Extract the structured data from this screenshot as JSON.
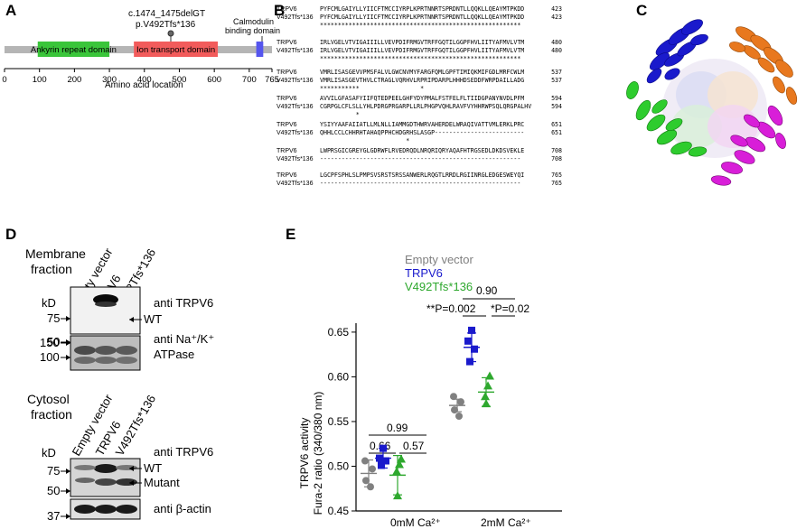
{
  "panelA": {
    "letter": "A",
    "mutation_line1": "c.1474_1475delGT",
    "mutation_line2": "p.V492Tfs*136",
    "domains": [
      {
        "label": "Ankyrin repeat domain",
        "start": 95,
        "end": 300,
        "color": "#3ac53a"
      },
      {
        "label": "Ion transport domain",
        "start": 370,
        "end": 610,
        "color": "#f25b5b"
      },
      {
        "label": "Calmodulin binding domain",
        "start": 720,
        "end": 740,
        "color": "#5555ee"
      }
    ],
    "ticks": [
      "0",
      "100",
      "200",
      "300",
      "400",
      "500",
      "600",
      "700",
      "765"
    ],
    "axis_label": "Amino acid location"
  },
  "panelB": {
    "letter": "B",
    "blocks": [
      {
        "rows": [
          {
            "name": "TRPV6",
            "seq": "PYFCMLGAIYLLYIICFTMCCIYRPLKPRTNNRTSPRDNTLLQQKLLQEAYMTPKDD",
            "num": "423"
          },
          {
            "name": "V492Tfs*136",
            "seq": "PYFCMLGAIYLLYIICFTMCCIYRPLKPRTNNRTSPRDNTLLQQKLLQEAYMTPKDD",
            "num": "423"
          },
          {
            "name": "",
            "seq": "********************************************************",
            "num": ""
          }
        ]
      },
      {
        "rows": [
          {
            "name": "TRPV6",
            "seq": "IRLVGELVTVIGAIIILLVEVPDIFRMGVTRFFGQTILGGPFHVLIITYAFMVLVTM",
            "num": "480"
          },
          {
            "name": "V492Tfs*136",
            "seq": "IRLVGELVTVIGAIIILLVEVPDIFRMGVTRFFGQTILGGPFHVLIITYAFMVLVTM",
            "num": "480"
          },
          {
            "name": "",
            "seq": "********************************************************",
            "num": ""
          }
        ]
      },
      {
        "rows": [
          {
            "name": "TRPV6",
            "seq": "VMRLISASGEVVPMSFALVLGWCNVMYFARGFQMLGPFTIMIQKMIFGDLMRFCWLM",
            "num": "537"
          },
          {
            "name": "V492Tfs*136",
            "seq": "VMRLISASGEVTHVLCTRAGLVQRHVLRPRIPDARPLHHHDSEDDFWRPDAILLADG",
            "num": "537"
          },
          {
            "name": "",
            "seq": "***********                 *",
            "num": ""
          }
        ]
      },
      {
        "rows": [
          {
            "name": "TRPV6",
            "seq": "AVVILGFASAFYIIFQTEDPEELGHFYDYPMALFSTFELFLTIIDGPANYNVDLPFM",
            "num": "594"
          },
          {
            "name": "V492Tfs*136",
            "seq": "CGRPGLCFLSLLYHLPDRGPRGARPLLRLPHGPVQHLRAVFVYHHRWPSQLQRGPALHV",
            "num": "594"
          },
          {
            "name": "",
            "seq": "          *",
            "num": ""
          }
        ]
      },
      {
        "rows": [
          {
            "name": "TRPV6",
            "seq": "YSIYYAAFAIIATLLMLNLLIAMMGDTHWRVAHERDELWRAQIVATTVMLERKLPRC",
            "num": "651"
          },
          {
            "name": "V492Tfs*136",
            "seq": "QHHLCCLCHHRHTAHAQPPHCHDGRHSLASGP-------------------------",
            "num": "651"
          },
          {
            "name": "",
            "seq": "                        *",
            "num": ""
          }
        ]
      },
      {
        "rows": [
          {
            "name": "TRPV6",
            "seq": "LWPRSGICGREYGLGDRWFLRVEDRQDLNRQRIQRYAQAFHTRGSEDLDKDSVEKLE",
            "num": "708"
          },
          {
            "name": "V492Tfs*136",
            "seq": "--------------------------------------------------------",
            "num": "708"
          }
        ]
      },
      {
        "rows": [
          {
            "name": "TRPV6",
            "seq": "LGCPFSPHLSLPMPSVSRSTSRSSANWERLRQGTLRRDLRGIINRGLEDGESWEYQI",
            "num": "765"
          },
          {
            "name": "V492Tfs*136",
            "seq": "--------------------------------------------------------",
            "num": "765"
          }
        ]
      }
    ]
  },
  "panelC": {
    "letter": "C",
    "subunit_colors": [
      "#1a1acc",
      "#e8781e",
      "#2ecc2e",
      "#d81ed8"
    ]
  },
  "panelD": {
    "letter": "D",
    "lanes": [
      "Empty vector",
      "TRPV6",
      "V492Tfs*136"
    ],
    "membrane": {
      "title_line1": "Membrane",
      "title_line2": "fraction",
      "kd": "kD",
      "markers_top": [
        "75",
        "50"
      ],
      "markers_bottom": [
        "150",
        "100"
      ],
      "band_wt": "WT",
      "antibody1": "anti TRPV6",
      "antibody2_line1": "anti Na⁺/K⁺",
      "antibody2_line2": "ATPase"
    },
    "cytosol": {
      "title_line1": "Cytosol",
      "title_line2": "fraction",
      "kd": "kD",
      "markers_top": [
        "75",
        "50"
      ],
      "markers_bottom": [
        "37"
      ],
      "band_wt": "WT",
      "band_mutant": "Mutant",
      "antibody1": "anti TRPV6",
      "antibody2": "anti β-actin"
    }
  },
  "panelE": {
    "letter": "E",
    "legend": [
      {
        "label": "Empty vector",
        "color": "#808080",
        "marker": "circle"
      },
      {
        "label": "TRPV6",
        "color": "#1a1acc",
        "marker": "square"
      },
      {
        "label": "V492Tfs*136",
        "color": "#2ea82e",
        "marker": "triangle"
      }
    ],
    "ylabel_line1": "TRPV6 activity",
    "ylabel_line2": "Fura-2 ratio (340/380 nm)",
    "y_ticks": [
      "0.45",
      "0.50",
      "0.55",
      "0.60",
      "0.65"
    ],
    "group_labels": [
      "0mM Ca²⁺",
      "2mM Ca²⁺"
    ],
    "annotations_0mM": {
      "overall": "0.99",
      "left": "0.66",
      "right": "0.57"
    },
    "annotations_2mM": {
      "overall": "0.90",
      "left": "**P=0.002",
      "right": "*P=0.02"
    }
  },
  "chart_data": {
    "type": "scatter",
    "ylabel": "TRPV6 activity Fura-2 ratio (340/380 nm)",
    "ylim": [
      0.45,
      0.66
    ],
    "categories": [
      "0mM Ca²⁺",
      "2mM Ca²⁺"
    ],
    "series": [
      {
        "name": "Empty vector",
        "color": "#808080",
        "marker": "circle",
        "points": [
          [
            0,
            0.506
          ],
          [
            0,
            0.497
          ],
          [
            0,
            0.484
          ],
          [
            0,
            0.477
          ]
        ],
        "means": [
          0.492,
          0.568
        ],
        "errors": [
          0.015,
          0.007
        ]
      },
      {
        "name": "TRPV6",
        "color": "#1a1acc",
        "marker": "square",
        "points": [
          [
            0,
            0.52
          ],
          [
            0,
            0.509
          ],
          [
            0,
            0.506
          ],
          [
            0,
            0.501
          ],
          [
            1,
            0.652
          ],
          [
            1,
            0.64
          ],
          [
            1,
            0.631
          ],
          [
            1,
            0.617
          ]
        ],
        "means": [
          0.509,
          0.633
        ],
        "errors": [
          0.011,
          0.016
        ]
      },
      {
        "name": "V492Tfs*136",
        "color": "#2ea82e",
        "marker": "triangle",
        "points": [
          [
            0,
            0.508
          ],
          [
            0,
            0.502
          ],
          [
            0,
            0.494
          ],
          [
            0,
            0.467
          ],
          [
            1,
            0.601
          ],
          [
            1,
            0.59
          ],
          [
            1,
            0.578
          ],
          [
            1,
            0.57
          ]
        ],
        "means": [
          0.49,
          0.583
        ],
        "errors": [
          0.022,
          0.016
        ]
      }
    ],
    "extra_points_2mM_empty": [
      0.578,
      0.572,
      0.563,
      0.556
    ]
  }
}
